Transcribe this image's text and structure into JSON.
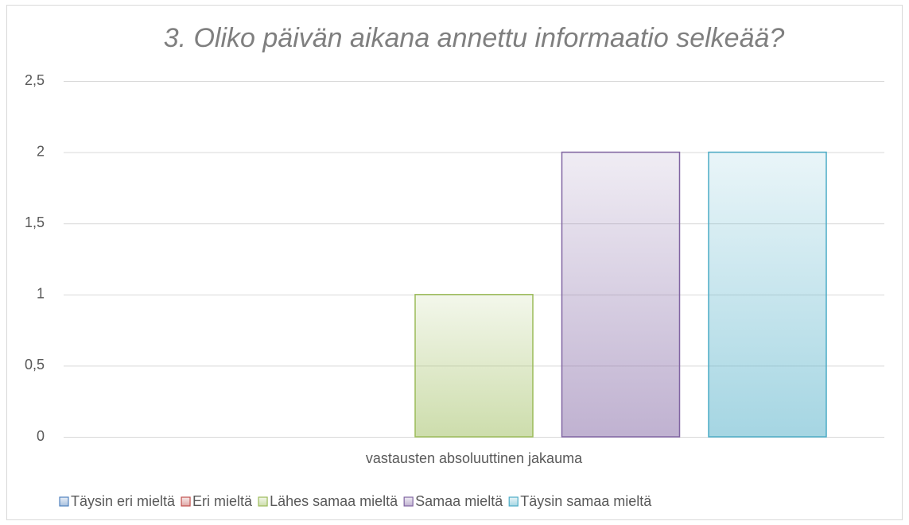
{
  "chart_data": {
    "type": "bar",
    "title": "3. Oliko päivän aikana annettu informaatio selkeää?",
    "categories": [
      "vastausten absoluuttinen jakauma"
    ],
    "series": [
      {
        "name": "Täysin eri mieltä",
        "color": "#4f81bd",
        "values": [
          0
        ]
      },
      {
        "name": "Eri mieltä",
        "color": "#c0504d",
        "values": [
          0
        ]
      },
      {
        "name": "Lähes samaa mieltä",
        "color": "#9bbb59",
        "values": [
          1
        ]
      },
      {
        "name": "Samaa mieltä",
        "color": "#8064a2",
        "values": [
          2
        ]
      },
      {
        "name": "Täysin samaa mieltä",
        "color": "#4bacc6",
        "values": [
          2
        ]
      }
    ],
    "ylim": [
      0,
      2.5
    ],
    "yticks": [
      0,
      {
        "value": 0.5,
        "label": "0,5"
      },
      1,
      {
        "value": 1.5,
        "label": "1,5"
      },
      2,
      {
        "value": 2.5,
        "label": "2,5"
      }
    ],
    "grid": true,
    "legend": "bottom"
  }
}
